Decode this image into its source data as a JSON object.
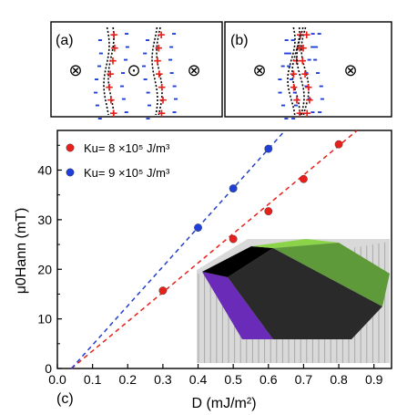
{
  "panels": {
    "a": {
      "label": "(a)",
      "symbols": [
        "⊗",
        "⊙",
        "⊗"
      ],
      "plus_sign": "+",
      "minus_sign": "-"
    },
    "b": {
      "label": "(b)",
      "symbols": [
        "⊗",
        "⊗"
      ],
      "plus_sign": "+",
      "minus_sign": "-"
    },
    "c": {
      "label": "(c)"
    }
  },
  "colors": {
    "red": "#e8201b",
    "blue": "#1f3fd8",
    "black": "#000000",
    "green": "#8bd44a",
    "purple": "#6a2bb8"
  },
  "chart_data": {
    "type": "scatter",
    "xlabel": "D (mJ/m²)",
    "ylabel": "μ0Hann (mT)",
    "xlim": [
      0,
      0.95
    ],
    "ylim": [
      0,
      48
    ],
    "xticks": [
      "0.0",
      "0.1",
      "0.2",
      "0.3",
      "0.4",
      "0.5",
      "0.6",
      "0.7",
      "0.8",
      "0.9"
    ],
    "yticks": [
      "0",
      "10",
      "20",
      "30",
      "40"
    ],
    "legend_position": "top-left",
    "series": [
      {
        "name": "Ku= 8 ×10⁵ J/m³",
        "color": "red",
        "x": [
          0.3,
          0.5,
          0.6,
          0.7,
          0.8
        ],
        "y": [
          15.7,
          26.1,
          31.7,
          38.2,
          45.2
        ],
        "fit": {
          "x": [
            0.04,
            0.93
          ],
          "y": [
            0,
            52.6
          ]
        }
      },
      {
        "name": "Ku= 9 ×10⁵ J/m³",
        "color": "blue",
        "x": [
          0.4,
          0.5,
          0.6
        ],
        "y": [
          28.4,
          36.3,
          44.3
        ],
        "fit": {
          "x": [
            0.04,
            0.66
          ],
          "y": [
            0,
            49.0
          ]
        }
      }
    ]
  }
}
